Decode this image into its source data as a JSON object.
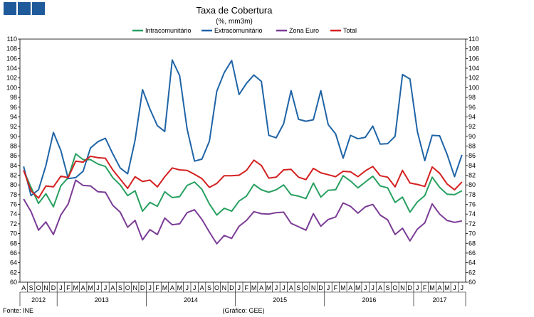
{
  "header": {
    "title": "Taxa de Cobertura",
    "subtitle": "(%, mm3m)"
  },
  "footer": {
    "source": "Fonte: INE",
    "graphic": "(Gráfico: GEE)"
  },
  "colors": {
    "brand": "#1f5a9a",
    "axis": "#000000",
    "grid": "#d0d0d0"
  },
  "chart_data": {
    "type": "line",
    "y_range": [
      60,
      110
    ],
    "y_tick_step": 2,
    "y_axis_both_sides": true,
    "legend_position": "top-center",
    "grid": false,
    "x": [
      "A",
      "S",
      "O",
      "N",
      "D",
      "J",
      "F",
      "M",
      "A",
      "M",
      "J",
      "J",
      "A",
      "S",
      "O",
      "N",
      "D",
      "J",
      "F",
      "M",
      "A",
      "M",
      "J",
      "J",
      "A",
      "S",
      "O",
      "N",
      "D",
      "J",
      "F",
      "M",
      "A",
      "M",
      "J",
      "J",
      "A",
      "S",
      "O",
      "N",
      "D",
      "J",
      "F",
      "M",
      "A",
      "M",
      "J",
      "J",
      "A",
      "S",
      "O",
      "N",
      "D",
      "J",
      "F",
      "M",
      "A",
      "M",
      "J",
      "J"
    ],
    "x_groups": [
      {
        "label": "2012",
        "start": 0,
        "end": 4
      },
      {
        "label": "2013",
        "start": 5,
        "end": 16
      },
      {
        "label": "2014",
        "start": 17,
        "end": 28
      },
      {
        "label": "2015",
        "start": 29,
        "end": 40
      },
      {
        "label": "2016",
        "start": 41,
        "end": 52
      },
      {
        "label": "2017",
        "start": 53,
        "end": 59
      }
    ],
    "series": [
      {
        "name": "Intracomunitário",
        "color": "#27a060",
        "values": [
          83,
          79.5,
          76.2,
          78.2,
          75.5,
          79.8,
          81.5,
          86.4,
          85.2,
          85.2,
          84.3,
          83.8,
          81.5,
          80,
          77.8,
          78.8,
          74.6,
          76.4,
          75.6,
          78.6,
          77.4,
          77.6,
          79.9,
          80.6,
          79.1,
          76.1,
          73.8,
          75.2,
          74.6,
          76.7,
          77.7,
          80.1,
          79,
          78.5,
          79,
          80,
          78,
          77.7,
          77.2,
          80.4,
          77.5,
          78.9,
          79,
          81.9,
          80.8,
          79.4,
          80.6,
          81.8,
          79.8,
          79.4,
          76.4,
          77.5,
          74.4,
          76.5,
          77.8,
          81.6,
          79.5,
          78.1,
          78,
          78.8
        ]
      },
      {
        "name": "Extracomunitário",
        "color": "#1f64a6",
        "values": [
          83.8,
          77.8,
          79,
          84,
          90.8,
          87.1,
          81.3,
          81.5,
          82.8,
          87.6,
          88.9,
          89.6,
          86.4,
          83.5,
          82.3,
          89.2,
          99.6,
          95.6,
          92.2,
          91,
          105.7,
          102.5,
          91.5,
          84.9,
          85.3,
          89,
          99.3,
          103.1,
          105.6,
          98.6,
          100.9,
          102.6,
          101.3,
          90.2,
          89.7,
          92.6,
          99.4,
          93.5,
          93.1,
          93.4,
          99.4,
          92.4,
          90.5,
          85.5,
          90.2,
          89.5,
          89.8,
          92.1,
          88.4,
          88.5,
          90,
          102.7,
          101.8,
          91,
          85,
          90.2,
          90.1,
          86.3,
          81.7,
          86.2
        ]
      },
      {
        "name": "Zona Euro",
        "color": "#7b3c96",
        "values": [
          77.1,
          74.5,
          70.7,
          72.4,
          69.8,
          73.8,
          76.1,
          81,
          79.9,
          79.8,
          78.6,
          78.5,
          75.8,
          74.4,
          71.3,
          72.7,
          68.7,
          70.8,
          69.8,
          73.2,
          71.8,
          72,
          74.3,
          74.9,
          72.9,
          70.3,
          67.9,
          69.6,
          69,
          71.5,
          72.7,
          74.5,
          74.1,
          74,
          74.3,
          74.4,
          72.1,
          71.4,
          70.7,
          74.1,
          71.5,
          72.9,
          73.4,
          76.3,
          75.6,
          74.2,
          75.5,
          76,
          73.8,
          72.8,
          69.8,
          71.1,
          68.5,
          70.9,
          72.2,
          76.1,
          74,
          72.7,
          72.3,
          72.6
        ]
      },
      {
        "name": "Total",
        "color": "#d42020",
        "values": [
          83,
          78.8,
          77.3,
          79.8,
          79.6,
          81.8,
          81.5,
          84.9,
          84.7,
          85.9,
          85.6,
          85.5,
          83.1,
          81.2,
          79.3,
          81.7,
          80.7,
          81,
          79.6,
          81.7,
          83.5,
          83.1,
          83,
          82.2,
          81.3,
          79.5,
          80.3,
          81.9,
          81.9,
          82,
          83,
          85.1,
          84,
          81.4,
          81.6,
          83.1,
          83.2,
          81.6,
          81.1,
          83.4,
          82.5,
          82.1,
          81.7,
          82.8,
          82.7,
          81.7,
          82.9,
          83.8,
          81.9,
          81.6,
          79.6,
          83,
          80.4,
          80.1,
          79.7,
          83.7,
          82.4,
          80.2,
          79,
          80.6
        ]
      }
    ]
  }
}
